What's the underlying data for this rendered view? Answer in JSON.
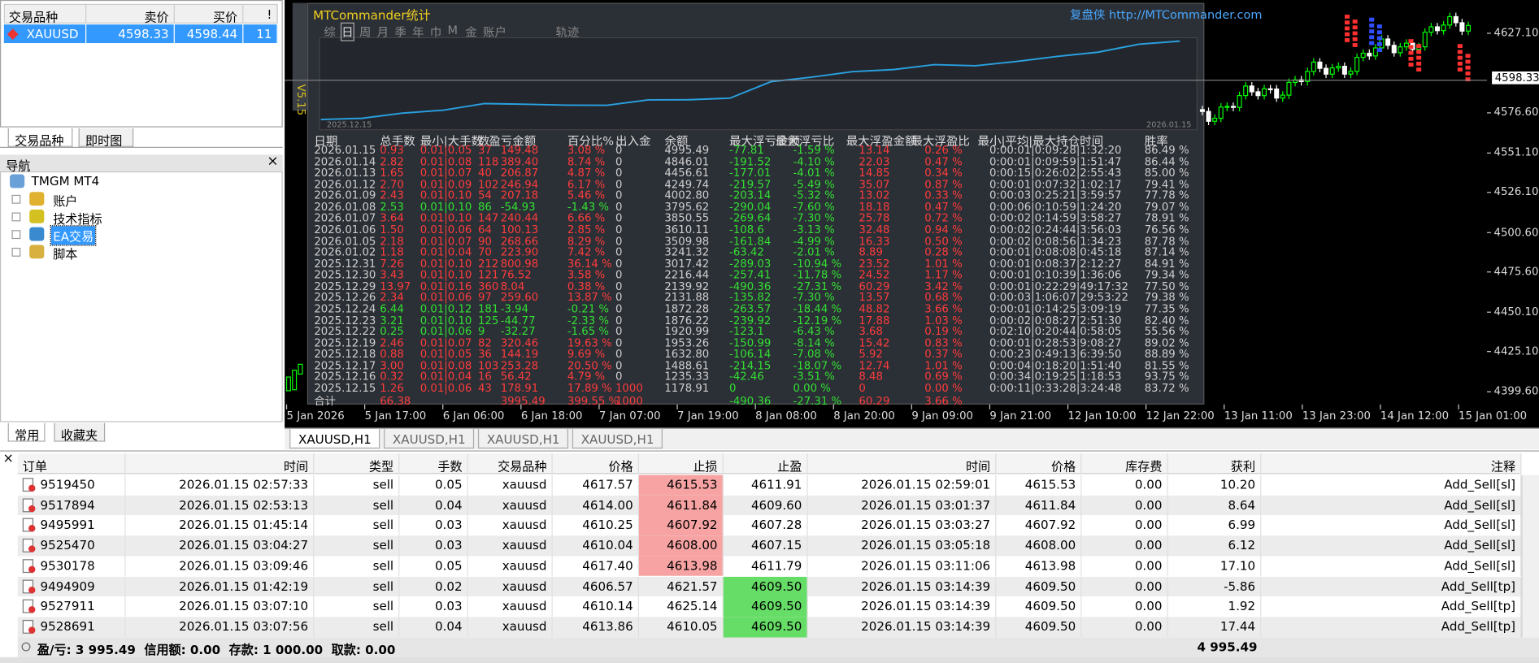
{
  "market_watch": {
    "headers": [
      "交易品种",
      "卖价",
      "买价",
      "!"
    ],
    "rows": [
      [
        "XAUUSD",
        "4598.33",
        "4598.44",
        "11"
      ]
    ],
    "tabs": [
      "交易品种",
      "即时图"
    ]
  },
  "navigator": {
    "title": "导航",
    "close": "×",
    "items": [
      "TMGM MT4",
      "账户",
      "技术指标",
      "EA交易",
      "脚本"
    ],
    "tabs": [
      "常用",
      "收藏夹"
    ]
  },
  "chart": {
    "price_labels": [
      "4627.10",
      "4576.60",
      "4551.10",
      "4526.10",
      "4500.60",
      "4475.60",
      "4450.10",
      "4425.10",
      "4399.60"
    ],
    "current_price": "4598.33",
    "time_labels": [
      "5 Jan 2026",
      "5 Jan 17:00",
      "6 Jan 06:00",
      "6 Jan 18:00",
      "7 Jan 07:00",
      "7 Jan 19:00",
      "8 Jan 08:00",
      "8 Jan 20:00",
      "9 Jan 09:00",
      "9 Jan 21:00",
      "12 Jan 10:00",
      "12 Jan 22:00",
      "13 Jan 11:00",
      "13 Jan 23:00",
      "14 Jan 12:00",
      "15 Jan 01:00"
    ],
    "tabs": [
      "XAUUSD,H1",
      "XAUUSD,H1",
      "XAUUSD,H1",
      "XAUUSD,H1"
    ]
  },
  "stats_panel": {
    "title": "MTCommander统计",
    "site": "复盘侠 http://MTCommander.com",
    "toolbar": [
      "综",
      "日",
      "周",
      "月",
      "季",
      "年",
      "巾",
      "M",
      "金",
      "账户",
      "轨迹"
    ],
    "version": "V5.15",
    "line_start": "2025.12.15",
    "line_end": "2026.01.15",
    "headers": [
      "日期",
      "总手数",
      "最小|大手数",
      "数",
      "盈亏金额",
      "百分比%",
      "出入金",
      "余额",
      "最大浮亏金额",
      "最大浮亏比",
      "最大浮盈金额",
      "最大浮盈比",
      "最小|平均|最大持仓时间",
      "胜率"
    ],
    "rows": [
      [
        "2026.01.15",
        "0.93",
        "0.01|0.05",
        "37",
        "149.48",
        "3.08 %",
        "0",
        "4995.49",
        "-77.81",
        "-1.59 %",
        "13.14",
        "0.26 %",
        "0:00:01|0:09:28|1:32:20",
        "86.49 %"
      ],
      [
        "2026.01.14",
        "2.82",
        "0.01|0.08",
        "118",
        "389.40",
        "8.74 %",
        "0",
        "4846.01",
        "-191.52",
        "-4.10 %",
        "22.03",
        "0.47 %",
        "0:00:01|0:09:59|1:51:47",
        "86.44 %"
      ],
      [
        "2026.01.13",
        "1.65",
        "0.01|0.07",
        "40",
        "206.87",
        "4.87 %",
        "0",
        "4456.61",
        "-177.01",
        "-4.01 %",
        "14.85",
        "0.34 %",
        "0:00:15|0:26:02|2:55:43",
        "85.00 %"
      ],
      [
        "2026.01.12",
        "2.70",
        "0.01|0.09",
        "102",
        "246.94",
        "6.17 %",
        "0",
        "4249.74",
        "-219.57",
        "-5.49 %",
        "35.07",
        "0.87 %",
        "0:00:01|0:07:32|1:02:17",
        "79.41 %"
      ],
      [
        "2026.01.09",
        "2.43",
        "0.01|0.10",
        "54",
        "207.18",
        "5.46 %",
        "0",
        "4002.80",
        "-203.14",
        "-5.32 %",
        "13.02",
        "0.33 %",
        "0:00:03|0:25:21|3:59:57",
        "77.78 %"
      ],
      [
        "2026.01.08",
        "2.53",
        "0.01|0.10",
        "86",
        "-54.93",
        "-1.43 %",
        "0",
        "3795.62",
        "-290.04",
        "-7.60 %",
        "18.18",
        "0.47 %",
        "0:00:06|0:10:59|1:24:20",
        "79.07 %"
      ],
      [
        "2026.01.07",
        "3.64",
        "0.01|0.10",
        "147",
        "240.44",
        "6.66 %",
        "0",
        "3850.55",
        "-269.64",
        "-7.30 %",
        "25.78",
        "0.72 %",
        "0:00:02|0:14:59|3:58:27",
        "78.91 %"
      ],
      [
        "2026.01.06",
        "1.50",
        "0.01|0.06",
        "64",
        "100.13",
        "2.85 %",
        "0",
        "3610.11",
        "-108.6",
        "-3.13 %",
        "32.48",
        "0.94 %",
        "0:00:02|0:24:44|3:56:03",
        "76.56 %"
      ],
      [
        "2026.01.05",
        "2.18",
        "0.01|0.07",
        "90",
        "268.66",
        "8.29 %",
        "0",
        "3509.98",
        "-161.84",
        "-4.99 %",
        "16.33",
        "0.50 %",
        "0:00:02|0:08:56|1:34:23",
        "87.78 %"
      ],
      [
        "2026.01.02",
        "1.18",
        "0.01|0.04",
        "70",
        "223.90",
        "7.42 %",
        "0",
        "3241.32",
        "-63.42",
        "-2.01 %",
        "8.89",
        "0.28 %",
        "0:00:01|0:08:08|0:45:18",
        "87.14 %"
      ],
      [
        "2025.12.31",
        "7.26",
        "0.01|0.10",
        "212",
        "800.98",
        "36.14 %",
        "0",
        "3017.42",
        "-289.03",
        "-10.94 %",
        "23.52",
        "1.01 %",
        "0:00:01|0:08:37|2:12:27",
        "84.91 %"
      ],
      [
        "2025.12.30",
        "3.43",
        "0.01|0.10",
        "121",
        "76.52",
        "3.58 %",
        "0",
        "2216.44",
        "-257.41",
        "-11.78 %",
        "24.52",
        "1.17 %",
        "0:00:01|0:10:39|1:36:06",
        "79.34 %"
      ],
      [
        "2025.12.29",
        "13.97",
        "0.01|0.16",
        "360",
        "8.04",
        "0.38 %",
        "0",
        "2139.92",
        "-490.36",
        "-27.31 %",
        "60.29",
        "3.42 %",
        "0:00:01|0:22:29|49:17:32",
        "77.50 %"
      ],
      [
        "2025.12.26",
        "2.34",
        "0.01|0.06",
        "97",
        "259.60",
        "13.87 %",
        "0",
        "2131.88",
        "-135.82",
        "-7.30 %",
        "13.57",
        "0.68 %",
        "0:00:03|1:06:07|29:53:22",
        "79.38 %"
      ],
      [
        "2025.12.24",
        "6.44",
        "0.01|0.12",
        "181",
        "-3.94",
        "-0.21 %",
        "0",
        "1872.28",
        "-263.57",
        "-18.44 %",
        "48.82",
        "3.66 %",
        "0:00:01|0:14:25|3:09:19",
        "77.35 %"
      ],
      [
        "2025.12.23",
        "3.21",
        "0.01|0.10",
        "125",
        "-44.77",
        "-2.33 %",
        "0",
        "1876.22",
        "-239.92",
        "-12.19 %",
        "17.88",
        "1.03 %",
        "0:00:02|0:08:27|2:51:30",
        "82.40 %"
      ],
      [
        "2025.12.22",
        "0.25",
        "0.01|0.06",
        "9",
        "-32.27",
        "-1.65 %",
        "0",
        "1920.99",
        "-123.1",
        "-6.43 %",
        "3.68",
        "0.19 %",
        "0:02:10|0:20:44|0:58:05",
        "55.56 %"
      ],
      [
        "2025.12.19",
        "2.46",
        "0.01|0.07",
        "82",
        "320.46",
        "19.63 %",
        "0",
        "1953.26",
        "-150.99",
        "-8.14 %",
        "15.42",
        "0.83 %",
        "0:00:01|0:28:53|9:08:27",
        "89.02 %"
      ],
      [
        "2025.12.18",
        "0.88",
        "0.01|0.05",
        "36",
        "144.19",
        "9.69 %",
        "0",
        "1632.80",
        "-106.14",
        "-7.08 %",
        "5.92",
        "0.37 %",
        "0:00:23|0:49:13|6:39:50",
        "88.89 %"
      ],
      [
        "2025.12.17",
        "3.00",
        "0.01|0.08",
        "103",
        "253.28",
        "20.50 %",
        "0",
        "1488.61",
        "-214.15",
        "-18.07 %",
        "12.74",
        "1.01 %",
        "0:00:04|0:18:20|1:51:40",
        "81.55 %"
      ],
      [
        "2025.12.16",
        "0.32",
        "0.01|0.04",
        "16",
        "56.42",
        "4.79 %",
        "0",
        "1235.33",
        "-42.46",
        "-3.51 %",
        "8.48",
        "0.69 %",
        "0:00:34|0:19:25|1:18:53",
        "93.75 %"
      ],
      [
        "2025.12.15",
        "1.26",
        "0.01|0.06",
        "43",
        "178.91",
        "17.89 %",
        "1000",
        "1178.91",
        "0",
        "0.00 %",
        "0",
        "0.00 %",
        "0:00:11|0:33:28|3:24:48",
        "83.72 %"
      ]
    ],
    "total": [
      "合计",
      "66.38",
      null,
      null,
      "3995.49",
      "399.55 %",
      "1000",
      null,
      "-490.36",
      "-27.31 %",
      "60.29",
      "3.66 %",
      null,
      null
    ]
  },
  "orders": {
    "headers": [
      "订单",
      "时间",
      "类型",
      "手数",
      "交易品种",
      "价格",
      "止损",
      "止盈",
      "时间",
      "价格",
      "库存费",
      "获利",
      "注释"
    ],
    "rows": [
      [
        "9519450",
        "2026.01.15 02:57:33",
        "sell",
        "0.05",
        "xauusd",
        "4617.57",
        "4615.53",
        "4611.91",
        "2026.01.15 02:59:01",
        "4615.53",
        "0.00",
        "10.20",
        "Add_Sell[sl]"
      ],
      [
        "9517894",
        "2026.01.15 02:53:13",
        "sell",
        "0.04",
        "xauusd",
        "4614.00",
        "4611.84",
        "4609.60",
        "2026.01.15 03:01:37",
        "4611.84",
        "0.00",
        "8.64",
        "Add_Sell[sl]"
      ],
      [
        "9495991",
        "2026.01.15 01:45:14",
        "sell",
        "0.03",
        "xauusd",
        "4610.25",
        "4607.92",
        "4607.28",
        "2026.01.15 03:03:27",
        "4607.92",
        "0.00",
        "6.99",
        "Add_Sell[sl]"
      ],
      [
        "9525470",
        "2026.01.15 03:04:27",
        "sell",
        "0.03",
        "xauusd",
        "4610.04",
        "4608.00",
        "4607.15",
        "2026.01.15 03:05:18",
        "4608.00",
        "0.00",
        "6.12",
        "Add_Sell[sl]"
      ],
      [
        "9530178",
        "2026.01.15 03:09:46",
        "sell",
        "0.05",
        "xauusd",
        "4617.40",
        "4613.98",
        "4611.79",
        "2026.01.15 03:11:06",
        "4613.98",
        "0.00",
        "17.10",
        "Add_Sell[sl]"
      ],
      [
        "9494909",
        "2026.01.15 01:42:19",
        "sell",
        "0.02",
        "xauusd",
        "4606.57",
        "4621.57",
        "4609.50",
        "2026.01.15 03:14:39",
        "4609.50",
        "0.00",
        "-5.86",
        "Add_Sell[tp]"
      ],
      [
        "9527911",
        "2026.01.15 03:07:10",
        "sell",
        "0.03",
        "xauusd",
        "4610.14",
        "4625.14",
        "4609.50",
        "2026.01.15 03:14:39",
        "4609.50",
        "0.00",
        "1.92",
        "Add_Sell[tp]"
      ],
      [
        "9528691",
        "2026.01.15 03:07:56",
        "sell",
        "0.04",
        "xauusd",
        "4613.86",
        "4610.05",
        "4609.50",
        "2026.01.15 03:14:39",
        "4609.50",
        "0.00",
        "17.44",
        "Add_Sell[tp]"
      ]
    ],
    "summary": "盈/亏: 3 995.49  信用额: 0.00  存款: 1 000.00  取款: 0.00",
    "summary_total": "4 995.49",
    "close": "×"
  }
}
